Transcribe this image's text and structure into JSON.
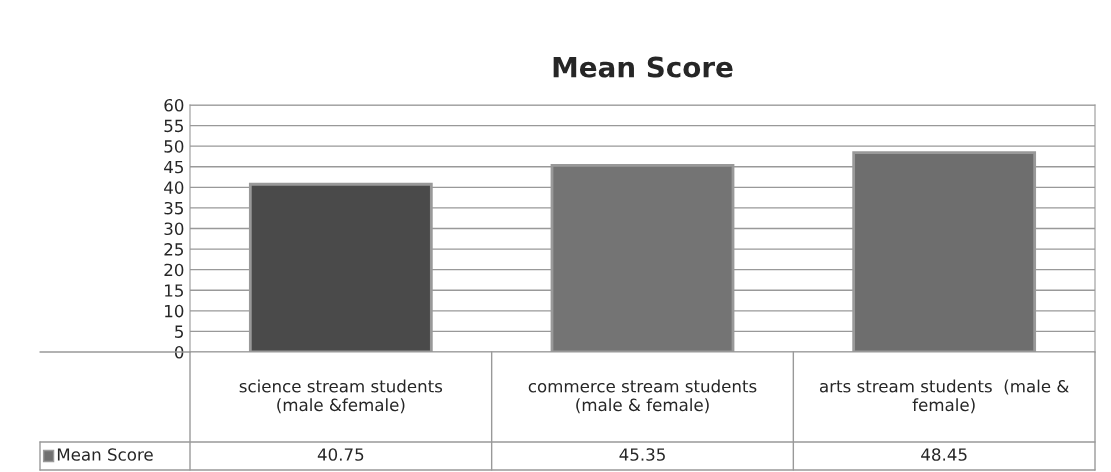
{
  "chart_data": {
    "type": "bar",
    "title": "Mean Score",
    "categories": [
      "science stream students\n(male &female)",
      "commerce stream students\n(male & female)",
      "arts stream students  (male &\nfemale)"
    ],
    "series": [
      {
        "name": "Mean Score",
        "color": "#707070",
        "colors": [
          "#4a4a4a",
          "#747474",
          "#6e6e6e"
        ],
        "values": [
          40.75,
          45.35,
          48.45
        ]
      }
    ],
    "ylim": [
      0,
      60
    ],
    "yticks": [
      0,
      5,
      10,
      15,
      20,
      25,
      30,
      35,
      40,
      45,
      50,
      55,
      60
    ],
    "grid": "y",
    "data_labels": true,
    "legend": "bottom left"
  }
}
